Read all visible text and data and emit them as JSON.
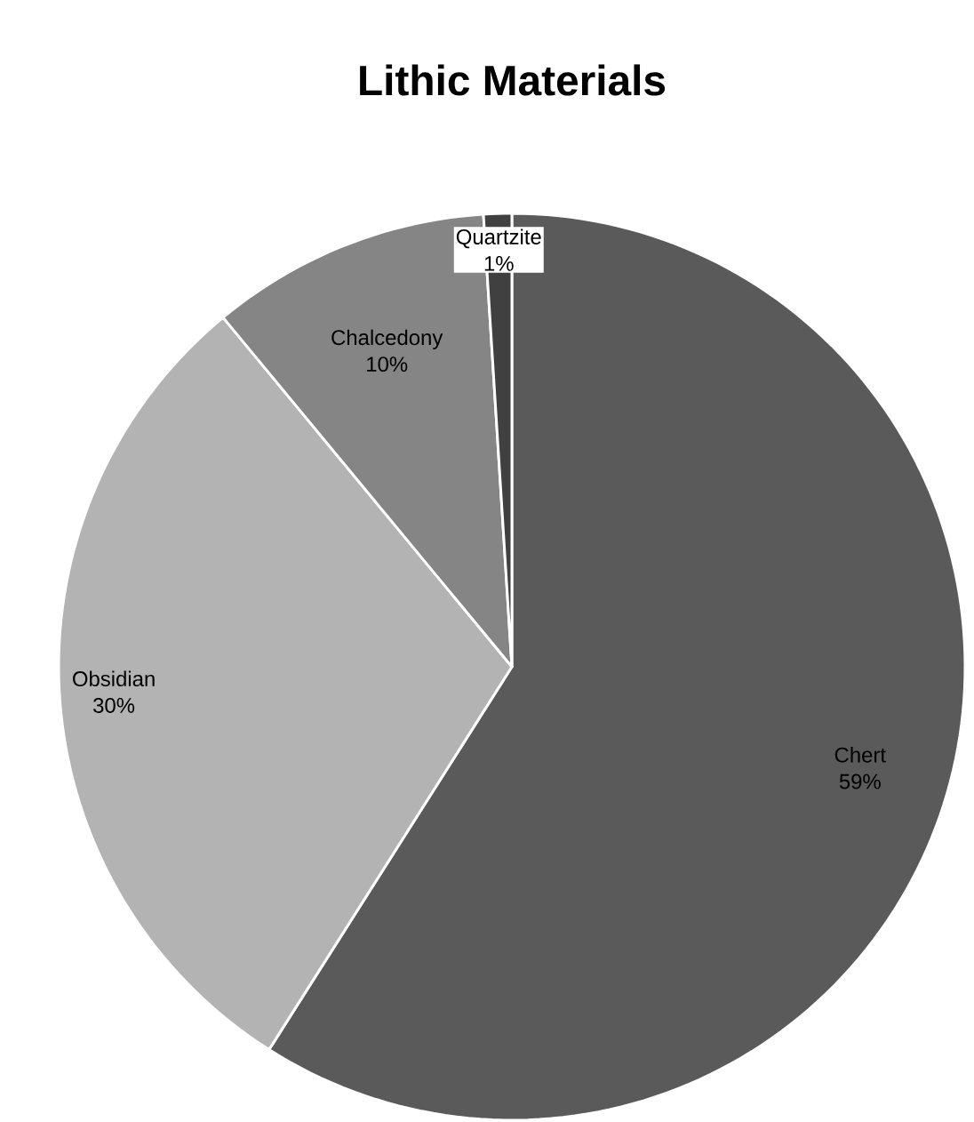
{
  "chart_data": {
    "type": "pie",
    "title": "Lithic Materials",
    "categories": [
      "Chert",
      "Obsidian",
      "Chalcedony",
      "Quartzite"
    ],
    "values": [
      59,
      30,
      10,
      1
    ],
    "colors": [
      "#5a5a5a",
      "#b3b3b3",
      "#858585",
      "#404040"
    ],
    "value_labels": [
      "59%",
      "30%",
      "10%",
      "1%"
    ]
  }
}
